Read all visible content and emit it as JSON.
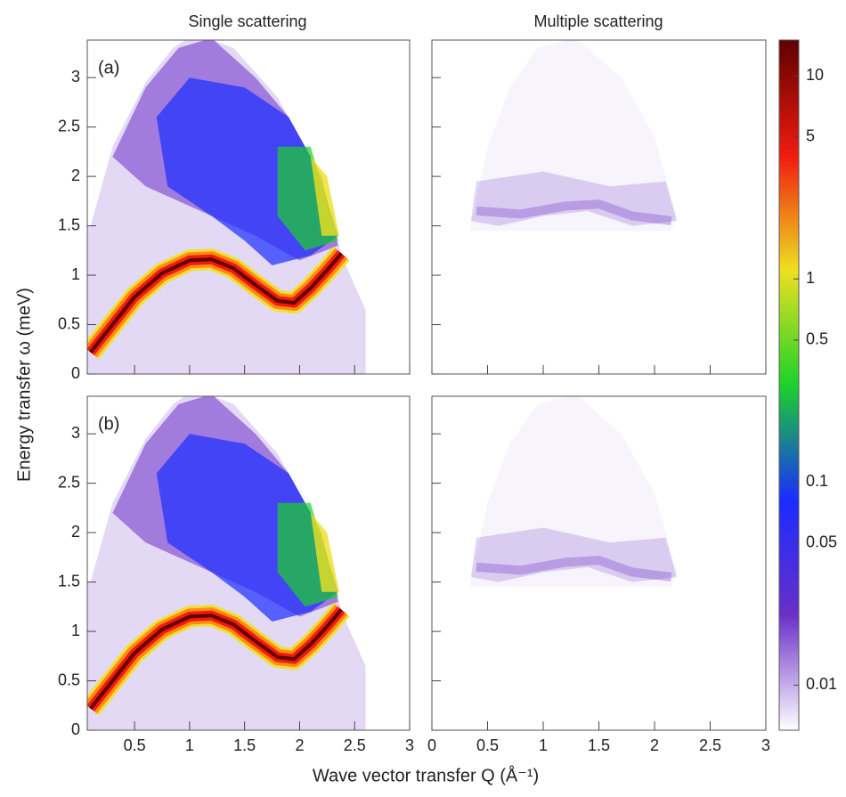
{
  "chart_data": {
    "type": "heatmap",
    "column_titles": [
      "Single scattering",
      "Multiple scattering"
    ],
    "xlabel": "Wave vector transfer Q (Å⁻¹)",
    "ylabel": "Energy transfer ω (meV)",
    "ylim": [
      0,
      3.38
    ],
    "yticks": [
      0,
      0.5,
      1,
      1.5,
      2,
      2.5,
      3
    ],
    "panels": [
      {
        "label": "(a)",
        "xlim": [
          0.07,
          3.0
        ]
      },
      {
        "xlim": [
          0,
          3.0
        ]
      },
      {
        "label": "(b)",
        "xlim": [
          0.07,
          3.0
        ],
        "xticks": [
          0.5,
          1,
          1.5,
          2,
          2.5,
          3
        ]
      },
      {
        "xlim": [
          0,
          3.0
        ],
        "xticks": [
          0,
          0.5,
          1,
          1.5,
          2,
          2.5,
          3
        ]
      }
    ],
    "colorbar": {
      "scale": "log",
      "lim": [
        0.006,
        15
      ],
      "ticks": [
        0.01,
        0.05,
        0.1,
        0.5,
        1,
        5,
        10
      ],
      "colormap": [
        "#ffffff",
        "#6a2fc8",
        "#1a2cff",
        "#1bd22a",
        "#eee020",
        "#f01a10",
        "#600000"
      ]
    }
  }
}
